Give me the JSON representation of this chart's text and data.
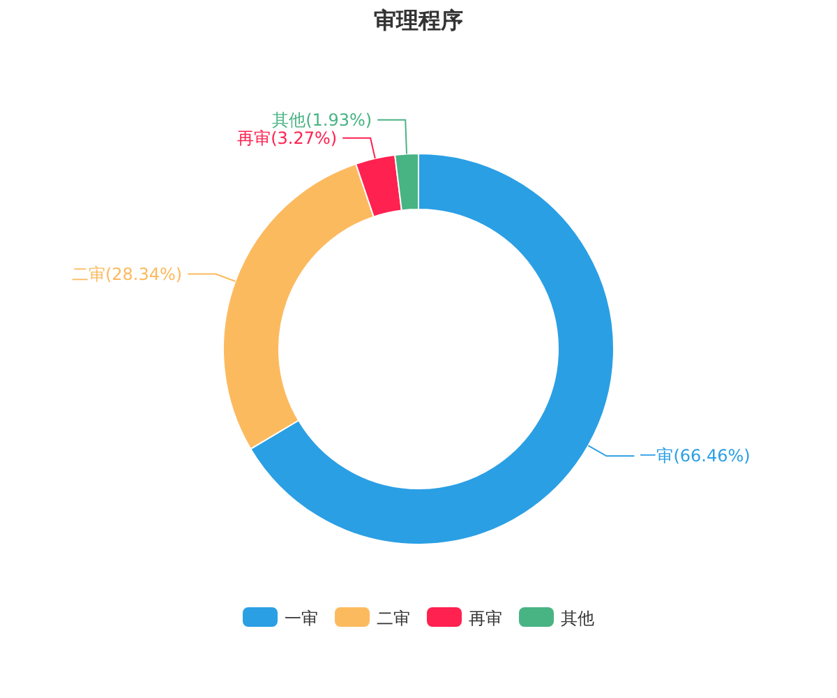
{
  "chart_data": {
    "type": "donut",
    "title": "审理程序",
    "categories": [
      "一审",
      "二审",
      "再审",
      "其他"
    ],
    "values": [
      66.46,
      28.34,
      3.27,
      1.93
    ],
    "colors": [
      "#2a9fe4",
      "#fcba5f",
      "#ff2150",
      "#48b383"
    ],
    "value_labels": [
      "一审(66.46%)",
      "二审(28.34%)",
      "再审(3.27%)",
      "其他(1.93%)"
    ],
    "legend": "bottom"
  }
}
